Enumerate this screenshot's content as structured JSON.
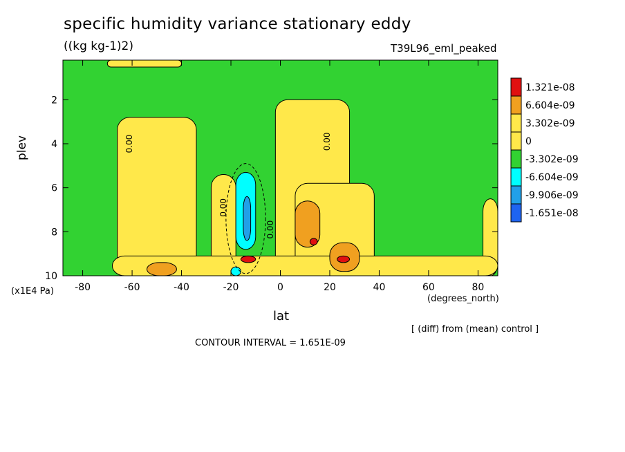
{
  "header": {
    "title": "specific humidity variance stationary eddy",
    "units": "((kg kg-1)2)",
    "run": "T39L96_eml_peaked"
  },
  "axes": {
    "ylabel": "plev",
    "yunits": "(x1E4 Pa)",
    "xlabel": "lat",
    "xunits": "(degrees_north)"
  },
  "footer": {
    "note": "[ (diff) from (mean) control ]",
    "contour_interval": "CONTOUR INTERVAL = 1.651E-09"
  },
  "chart_data": {
    "type": "heatmap",
    "plot": "latitude-pressure contour (filled)",
    "x": {
      "label": "lat",
      "units": "(degrees_north)",
      "range": [
        -88,
        88
      ],
      "ticks": [
        -80,
        -60,
        -40,
        -20,
        0,
        20,
        40,
        60,
        80
      ],
      "tick_labels": [
        "-80",
        "-60",
        "-40",
        "-20",
        "0",
        "20",
        "40",
        "60",
        "80"
      ]
    },
    "y": {
      "label": "plev",
      "units": "(x1E4 Pa)",
      "range": [
        0.2,
        10
      ],
      "inverted": true,
      "ticks": [
        2,
        4,
        6,
        8,
        10
      ],
      "tick_labels": [
        "2",
        "4",
        "6",
        "8",
        "10"
      ]
    },
    "contour_interval": 1.651e-09,
    "contour_labels": [
      "0.00",
      "0.00",
      "0.00",
      "0.00"
    ],
    "colorbar": {
      "levels": [
        {
          "label": "1.321e-08",
          "color": "#e01010"
        },
        {
          "label": "6.604e-09",
          "color": "#f0a020"
        },
        {
          "label": "3.302e-09",
          "color": "#ffe84a"
        },
        {
          "label": "0",
          "color": "#ffe84a"
        },
        {
          "label": "-3.302e-09",
          "color": "#32d232"
        },
        {
          "label": "-6.604e-09",
          "color": "#00ffff"
        },
        {
          "label": "-9.906e-09",
          "color": "#21a0e8"
        },
        {
          "label": "-1.651e-08",
          "color": "#1e64f0"
        }
      ]
    },
    "regions": [
      {
        "level": "positive",
        "lat": [
          -66,
          -34
        ],
        "plev": [
          2.8,
          10
        ]
      },
      {
        "level": "positive",
        "lat": [
          -28,
          -18
        ],
        "plev": [
          5.4,
          10
        ]
      },
      {
        "level": "positive",
        "lat": [
          -2,
          28
        ],
        "plev": [
          2.0,
          10
        ]
      },
      {
        "level": "positive",
        "lat": [
          6,
          38
        ],
        "plev": [
          5.8,
          10
        ]
      },
      {
        "level": "positive",
        "lat": [
          82,
          88
        ],
        "plev": [
          6.5,
          10
        ]
      },
      {
        "level": "positive",
        "lat": [
          -68,
          88
        ],
        "plev": [
          9.1,
          10
        ]
      },
      {
        "level": "strong",
        "lat": [
          -54,
          -42
        ],
        "plev": [
          9.4,
          10
        ]
      },
      {
        "level": "strong",
        "lat": [
          6,
          16
        ],
        "plev": [
          6.6,
          8.7
        ]
      },
      {
        "level": "strong",
        "lat": [
          20,
          32
        ],
        "plev": [
          8.5,
          9.8
        ]
      },
      {
        "level": "max",
        "lat": [
          -16,
          -10
        ],
        "plev": [
          9.1,
          9.4
        ]
      },
      {
        "level": "max",
        "lat": [
          12,
          15
        ],
        "plev": [
          8.3,
          8.6
        ]
      },
      {
        "level": "max",
        "lat": [
          23,
          28
        ],
        "plev": [
          9.1,
          9.4
        ]
      },
      {
        "level": "negative",
        "lat": [
          -18,
          -10
        ],
        "plev": [
          5.3,
          8.8
        ]
      },
      {
        "level": "negative",
        "lat": [
          -20,
          -16
        ],
        "plev": [
          9.6,
          10
        ]
      },
      {
        "level": "strong-negative",
        "lat": [
          -15,
          -12
        ],
        "plev": [
          6.4,
          8.4
        ]
      }
    ],
    "colors": {
      "background": "#32d232",
      "positive": "#ffe84a",
      "strong": "#f0a020",
      "max": "#e01010",
      "negative": "#00ffff",
      "strong-negative": "#21a0e8"
    }
  }
}
